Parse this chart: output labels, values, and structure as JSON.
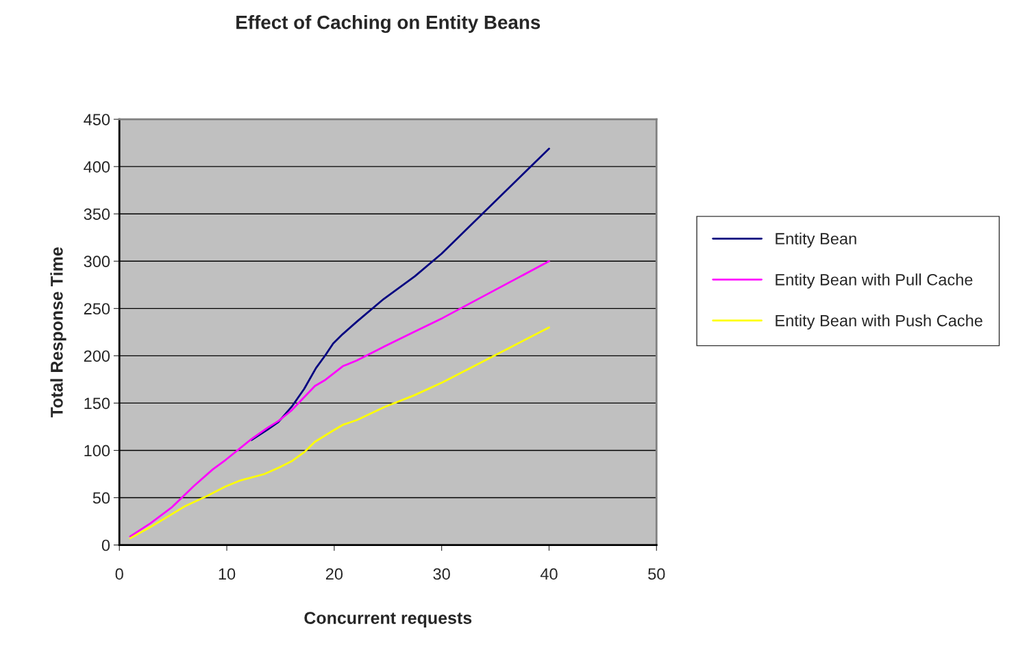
{
  "chart_data": {
    "type": "line",
    "title": "Effect of Caching on Entity Beans",
    "xlabel": "Concurrent requests",
    "ylabel": "Total Response Time",
    "xlim": [
      0,
      50
    ],
    "xticks": [
      0,
      10,
      20,
      30,
      40,
      50
    ],
    "ylim": [
      0,
      450
    ],
    "yticks": [
      0,
      50,
      100,
      150,
      200,
      250,
      300,
      350,
      400,
      450
    ],
    "grid": "y",
    "legend": "right",
    "marker": "none",
    "series": [
      {
        "name": "Entity Bean",
        "color": "#000080",
        "x": [
          12.3,
          13.8,
          14.8,
          16.1,
          17.2,
          18.3,
          19.2,
          19.9,
          20.8,
          22.1,
          24.6,
          27.5,
          30,
          40
        ],
        "values": [
          111,
          122,
          130,
          147,
          165,
          187,
          201,
          213,
          223,
          236,
          260,
          284,
          308,
          419
        ]
      },
      {
        "name": "Entity Bean with Pull Cache",
        "color": "#ff00ff",
        "x": [
          1,
          2.9,
          4.9,
          6.9,
          8.7,
          9.9,
          12.3,
          13.8,
          14.8,
          16,
          18.2,
          19.1,
          19.9,
          20.8,
          22.1,
          24.7,
          27.4,
          30.1,
          40
        ],
        "values": [
          9,
          23,
          40,
          62,
          80,
          90,
          112,
          124,
          131,
          142,
          168,
          174,
          181,
          189,
          195,
          210,
          225,
          240,
          300
        ]
      },
      {
        "name": "Entity Bean with Push Cache",
        "color": "#ffff00",
        "x": [
          1,
          2.9,
          4.8,
          6.1,
          8.2,
          9.9,
          11.2,
          13.5,
          14.9,
          16.1,
          17.2,
          18.2,
          19.9,
          20.8,
          22.1,
          24.7,
          27.4,
          30.1,
          40
        ],
        "values": [
          7,
          19,
          32,
          41,
          52,
          62,
          68,
          75,
          82,
          89,
          98,
          109,
          121,
          127,
          132,
          146,
          158,
          172,
          230
        ]
      }
    ]
  }
}
